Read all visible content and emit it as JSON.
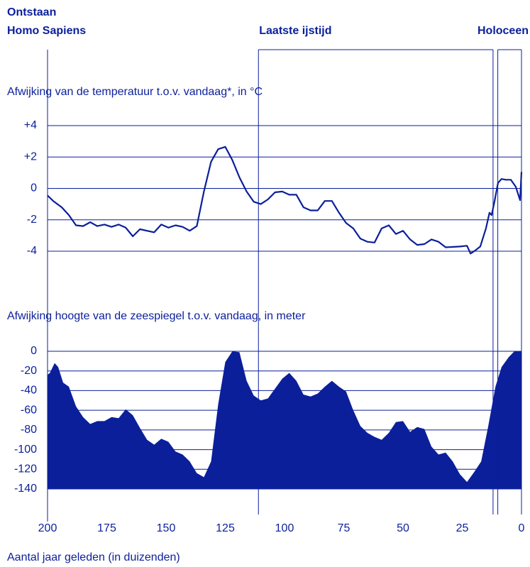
{
  "chart_data": [
    {
      "type": "line",
      "title": "Afwijking van de temperatuur t.o.v. vandaag*, in °C",
      "color": "#0b1f9b",
      "grid": true,
      "ylim": [
        -4,
        4
      ],
      "yticks": [
        {
          "value": 4,
          "label": "+4"
        },
        {
          "value": 2,
          "label": "+2"
        },
        0,
        -2,
        -4
      ],
      "x": [
        200,
        197.6,
        194,
        191,
        188,
        185,
        182,
        179,
        176,
        173,
        170,
        167,
        164,
        161,
        155,
        152,
        149,
        146,
        143,
        140,
        137,
        134,
        131,
        128,
        125,
        122,
        119,
        116,
        113,
        110,
        107,
        104,
        101,
        98,
        95,
        92,
        89,
        86,
        83,
        80,
        77,
        74,
        71,
        68,
        65,
        62,
        59,
        56,
        53,
        50,
        47,
        44,
        41,
        38,
        35,
        32,
        26,
        23,
        21.5,
        19.5,
        17.4,
        15,
        13.5,
        12.6,
        11.4,
        9.9,
        8.4,
        6.6,
        4.5,
        2.4,
        0.6,
        0
      ],
      "values": [
        -0.45,
        -0.8,
        -1.2,
        -1.7,
        -2.35,
        -2.4,
        -2.15,
        -2.4,
        -2.3,
        -2.45,
        -2.3,
        -2.5,
        -3.05,
        -2.6,
        -2.8,
        -2.3,
        -2.5,
        -2.35,
        -2.45,
        -2.7,
        -2.4,
        -0.2,
        1.7,
        2.5,
        2.65,
        1.8,
        0.7,
        -0.2,
        -0.85,
        -1.0,
        -0.7,
        -0.25,
        -0.2,
        -0.4,
        -0.4,
        -1.2,
        -1.4,
        -1.4,
        -0.8,
        -0.8,
        -1.55,
        -2.2,
        -2.55,
        -3.2,
        -3.4,
        -3.45,
        -2.55,
        -2.35,
        -2.9,
        -2.7,
        -3.25,
        -3.6,
        -3.55,
        -3.25,
        -3.4,
        -3.75,
        -3.7,
        -3.65,
        -4.15,
        -3.95,
        -3.7,
        -2.55,
        -1.55,
        -1.7,
        -0.85,
        0.35,
        0.6,
        0.55,
        0.55,
        0.1,
        -0.75,
        1.05
      ]
    },
    {
      "type": "area",
      "title": "Afwijking hoogte van de zeespiegel t.o.v. vandaag, in meter",
      "color": "#0b1f9b",
      "grid": true,
      "ylim": [
        -140,
        0
      ],
      "yticks": [
        0,
        -20,
        -40,
        -60,
        -80,
        -100,
        -120,
        -140
      ],
      "xlim": [
        200,
        0
      ],
      "xticks": [
        200,
        175,
        150,
        125,
        100,
        75,
        50,
        25,
        0
      ],
      "xlabel": "Aantal jaar geleden (in duizenden)",
      "x": [
        200,
        199,
        197,
        195.5,
        193.4,
        191,
        188,
        185,
        182,
        179,
        176,
        173,
        170,
        167,
        164,
        161,
        158,
        155,
        152,
        149,
        146,
        143,
        140,
        137,
        134,
        131,
        128,
        125,
        122,
        119,
        116,
        113,
        110,
        107,
        104,
        101,
        98,
        95,
        92,
        89,
        86,
        83,
        80,
        77,
        74,
        71,
        68,
        65,
        62,
        59,
        56,
        53,
        50,
        47,
        44,
        41,
        38,
        35,
        32,
        29,
        26,
        23,
        20,
        17,
        14,
        11,
        8.4,
        5.4,
        3,
        0
      ],
      "values": [
        -24,
        -22,
        -12,
        -16,
        -32,
        -36,
        -56,
        -67,
        -74,
        -71,
        -71,
        -67,
        -68,
        -59,
        -65,
        -78,
        -90,
        -95,
        -89,
        -92,
        -102,
        -105,
        -112,
        -124,
        -128,
        -112,
        -54,
        -11,
        0,
        -1,
        -30,
        -45,
        -50,
        -48,
        -38,
        -28,
        -22,
        -30,
        -44,
        -46,
        -43,
        -36,
        -30,
        -36,
        -41,
        -60,
        -76,
        -83,
        -87,
        -90,
        -83,
        -72,
        -71,
        -82,
        -77,
        -79,
        -97,
        -105,
        -103,
        -112,
        -125,
        -133,
        -123,
        -112,
        -76,
        -36,
        -16,
        -6,
        0,
        0
      ]
    }
  ],
  "periods": [
    {
      "text": [
        "Ontstaan",
        "Homo Sapiens"
      ],
      "start": 200
    },
    {
      "text": [
        "Laatste ijstijd"
      ],
      "start": 111,
      "end": 12
    },
    {
      "text": [
        "Holoceen"
      ],
      "start": 10,
      "end": 0
    }
  ]
}
